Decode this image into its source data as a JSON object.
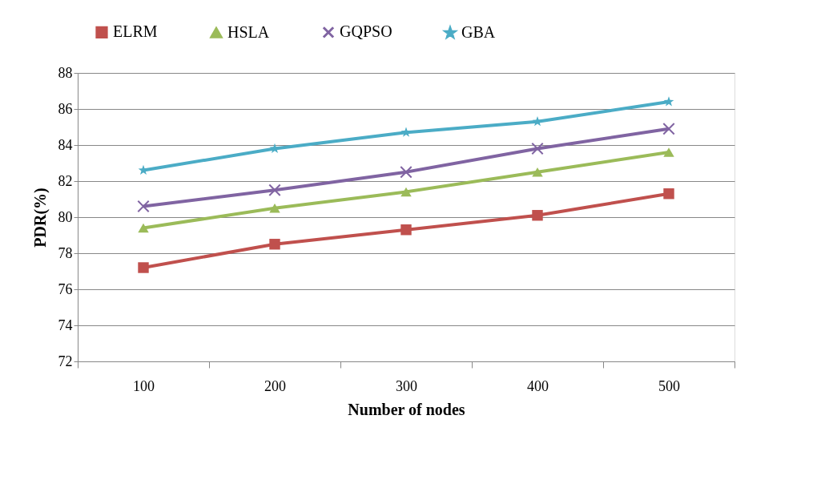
{
  "chart_data": {
    "type": "line",
    "xlabel": "Number of nodes",
    "ylabel": "PDR(%)",
    "categories": [
      "100",
      "200",
      "300",
      "400",
      "500"
    ],
    "series": [
      {
        "name": "ELRM",
        "color": "#c0504d",
        "marker": "square",
        "values": [
          77.2,
          78.5,
          79.3,
          80.1,
          81.3
        ]
      },
      {
        "name": "HSLA",
        "color": "#9bbb59",
        "marker": "triangle",
        "values": [
          79.4,
          80.5,
          81.4,
          82.5,
          83.6
        ]
      },
      {
        "name": "GQPSO",
        "color": "#8064a2",
        "marker": "cross",
        "values": [
          80.6,
          81.5,
          82.5,
          83.8,
          84.9
        ]
      },
      {
        "name": "GBA",
        "color": "#4bacc6",
        "marker": "star",
        "values": [
          82.6,
          83.8,
          84.7,
          85.3,
          86.4
        ]
      }
    ],
    "ylim": [
      72,
      88
    ],
    "yticks": [
      72,
      74,
      76,
      78,
      80,
      82,
      84,
      86,
      88
    ],
    "grid": "y",
    "legend": "top",
    "line_style": "solid"
  }
}
